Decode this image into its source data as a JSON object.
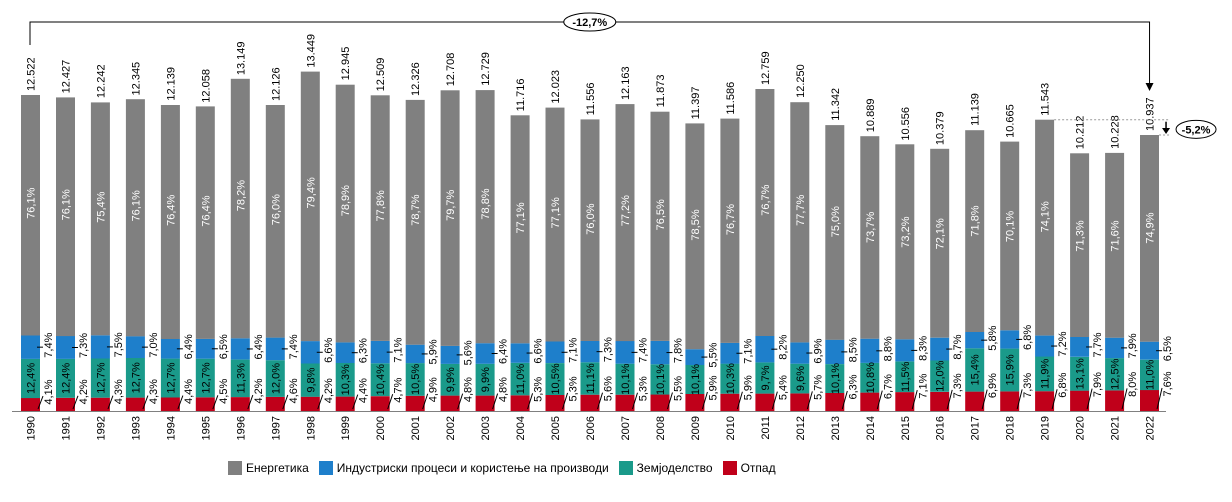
{
  "chart_data": {
    "type": "bar",
    "stacked": true,
    "title": "",
    "xlabel": "",
    "ylabel": "",
    "categories": [
      "1990",
      "1991",
      "1992",
      "1993",
      "1994",
      "1995",
      "1996",
      "1997",
      "1998",
      "1999",
      "2000",
      "2001",
      "2002",
      "2003",
      "2004",
      "2005",
      "2006",
      "2007",
      "2008",
      "2009",
      "2010",
      "2011",
      "2012",
      "2013",
      "2014",
      "2015",
      "2016",
      "2017",
      "2018",
      "2019",
      "2020",
      "2021",
      "2022"
    ],
    "totals": [
      12522,
      12427,
      12242,
      12345,
      12139,
      12058,
      13149,
      12126,
      13449,
      12945,
      12509,
      12326,
      12708,
      12729,
      11716,
      12023,
      11556,
      12163,
      11873,
      11397,
      11586,
      12759,
      12250,
      11342,
      10889,
      10556,
      10379,
      11139,
      10665,
      11543,
      10212,
      10228,
      10937
    ],
    "total_labels": [
      "12.522",
      "12.427",
      "12.242",
      "12.345",
      "12.139",
      "12.058",
      "13.149",
      "12.126",
      "13.449",
      "12.945",
      "12.509",
      "12.326",
      "12.708",
      "12.729",
      "11.716",
      "12.023",
      "11.556",
      "12.163",
      "11.873",
      "11.397",
      "11.586",
      "12.759",
      "12.250",
      "11.342",
      "10.889",
      "10.556",
      "10.379",
      "11.139",
      "10.665",
      "11.543",
      "10.212",
      "10.228",
      "10.937"
    ],
    "series": [
      {
        "name": "Отпад",
        "color": "#C0001A",
        "values": [
          4.1,
          4.2,
          4.3,
          4.3,
          4.4,
          4.5,
          4.2,
          4.6,
          4.2,
          4.4,
          4.7,
          4.9,
          4.8,
          4.8,
          5.3,
          5.3,
          5.6,
          5.3,
          5.5,
          5.9,
          5.9,
          5.4,
          5.7,
          6.3,
          6.7,
          7.1,
          7.3,
          6.9,
          7.3,
          6.8,
          7.9,
          8.0,
          7.6
        ]
      },
      {
        "name": "Земјоделство",
        "color": "#1A9A8A",
        "values": [
          12.4,
          12.4,
          12.7,
          12.7,
          12.7,
          12.7,
          11.3,
          12.0,
          9.8,
          10.3,
          10.4,
          10.5,
          9.9,
          9.9,
          11.0,
          10.5,
          11.1,
          10.1,
          10.1,
          10.1,
          10.3,
          9.7,
          9.6,
          10.1,
          10.8,
          11.5,
          12.0,
          15.4,
          15.9,
          11.9,
          13.1,
          12.5,
          11.0
        ]
      },
      {
        "name": "Индустриски процеси и користење на производи",
        "color": "#1E7FCB",
        "values": [
          7.4,
          7.3,
          7.5,
          7.0,
          6.4,
          6.5,
          6.4,
          7.4,
          6.6,
          6.3,
          7.1,
          5.9,
          5.6,
          6.4,
          6.6,
          7.1,
          7.3,
          7.4,
          7.8,
          5.5,
          7.1,
          8.2,
          6.9,
          8.5,
          8.8,
          8.3,
          8.7,
          5.8,
          6.8,
          7.2,
          7.7,
          7.9,
          6.5
        ]
      },
      {
        "name": "Енергетика",
        "color": "#808080",
        "values": [
          76.1,
          76.1,
          75.4,
          76.1,
          76.4,
          76.4,
          78.2,
          76.0,
          79.4,
          78.9,
          77.8,
          78.7,
          79.7,
          78.8,
          77.1,
          77.1,
          76.0,
          77.2,
          76.5,
          78.5,
          76.7,
          76.7,
          77.7,
          75.0,
          73.7,
          73.2,
          72.1,
          71.8,
          70.1,
          74.1,
          71.3,
          71.6,
          74.9
        ]
      }
    ],
    "value_unit": "percent share of total",
    "annotations": [
      {
        "text": "-12,7%",
        "from": "1990",
        "to": "2022"
      },
      {
        "text": "-5,2%",
        "from": "2019",
        "to": "2022"
      }
    ],
    "legend": {
      "position": "bottom",
      "entries": [
        "Енергетика",
        "Индустриски процеси и користење на производи",
        "Земјоделство",
        "Отпад"
      ]
    },
    "grid": false,
    "ylim": [
      0,
      14000
    ]
  },
  "legend_items": [
    {
      "label": "Енергетика",
      "color": "#808080"
    },
    {
      "label": "Индустриски процеси и користење на производи",
      "color": "#1E7FCB"
    },
    {
      "label": "Земјоделство",
      "color": "#1A9A8A"
    },
    {
      "label": "Отпад",
      "color": "#C0001A"
    }
  ]
}
